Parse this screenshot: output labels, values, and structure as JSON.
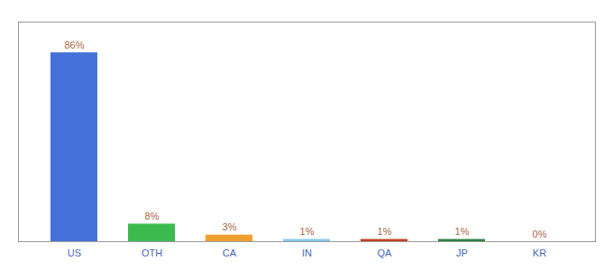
{
  "chart_data": {
    "type": "bar",
    "categories": [
      "US",
      "OTH",
      "CA",
      "IN",
      "QA",
      "JP",
      "KR"
    ],
    "values": [
      86,
      8,
      3,
      1,
      1,
      1,
      0
    ],
    "value_labels": [
      "86%",
      "8%",
      "3%",
      "1%",
      "1%",
      "1%",
      "0%"
    ],
    "colors": [
      "#4472d9",
      "#3dba4e",
      "#f0a030",
      "#80ccee",
      "#c04020",
      "#2d8040",
      "#aaaaaa"
    ],
    "ylim": [
      0,
      100
    ],
    "grid": false,
    "data_labels": true,
    "tick_labels": "x"
  }
}
